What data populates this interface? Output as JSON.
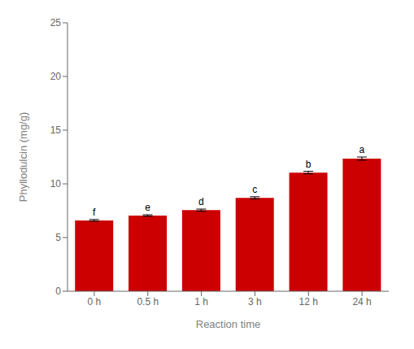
{
  "chart_data": {
    "type": "bar",
    "categories": [
      "0 h",
      "0.5 h",
      "1 h",
      "3 h",
      "12 h",
      "24 h"
    ],
    "values": [
      6.6,
      7.05,
      7.55,
      8.7,
      11.05,
      12.35
    ],
    "errors": [
      0.08,
      0.07,
      0.1,
      0.1,
      0.12,
      0.15
    ],
    "letters": [
      "f",
      "e",
      "d",
      "c",
      "b",
      "a"
    ],
    "color": "#cc0000",
    "xlabel": "Reaction time",
    "ylabel": "Phyllodulcin (mg/g)",
    "ylim": [
      0,
      25
    ],
    "yticks": [
      0,
      5,
      10,
      15,
      20,
      25
    ],
    "grid": false
  }
}
